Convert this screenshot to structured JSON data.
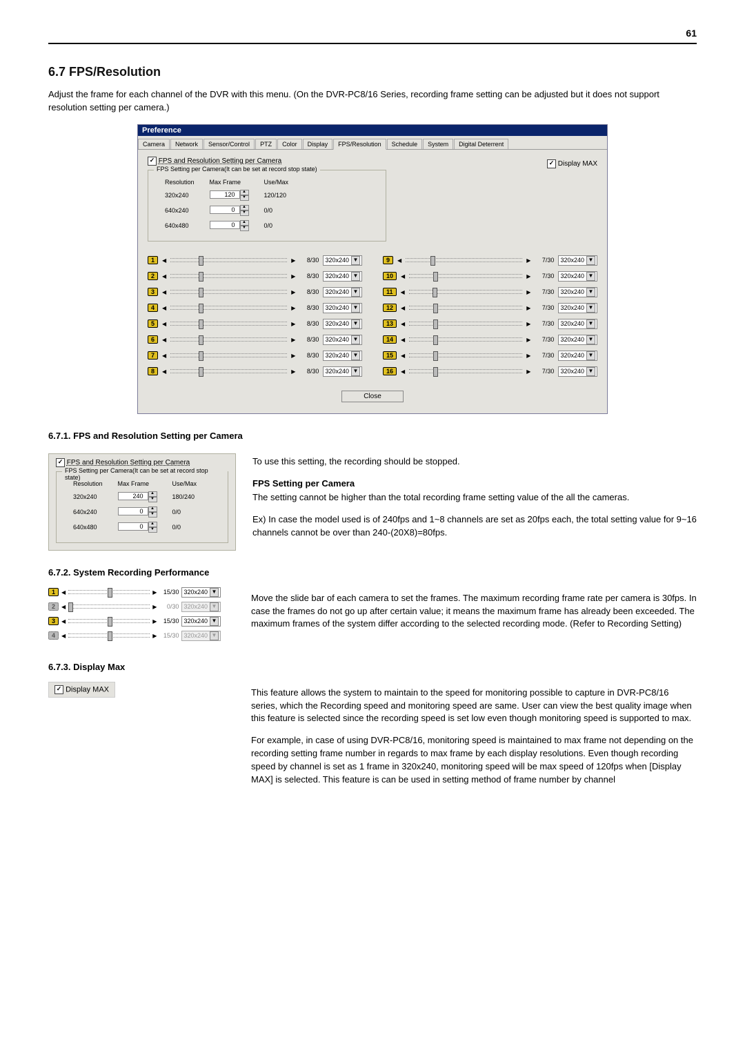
{
  "page_number": "61",
  "h2": "6.7    FPS/Resolution",
  "intro": "Adjust the frame for each channel of the DVR with this menu. (On the DVR-PC8/16 Series, recording frame setting can be adjusted but it does not support resolution setting per camera.)",
  "pref": {
    "title": "Preference",
    "tabs": [
      "Camera",
      "Network",
      "Sensor/Control",
      "PTZ",
      "Color",
      "Display",
      "FPS/Resolution",
      "Schedule",
      "System",
      "Digital Deterrent"
    ],
    "active_tab": 6,
    "chk_label": "FPS and Resolution Setting per Camera",
    "display_max_label": "Display MAX",
    "group_title": "FPS Setting per Camera(It can be set at record stop state)",
    "head_resolution": "Resolution",
    "head_maxframe": "Max Frame",
    "head_usemax": "Use/Max",
    "rows": [
      {
        "res": "320x240",
        "val": "120",
        "use": "120/120"
      },
      {
        "res": "640x240",
        "val": "0",
        "use": "0/0"
      },
      {
        "res": "640x480",
        "val": "0",
        "use": "0/0"
      }
    ],
    "left_cams": [
      {
        "n": "1",
        "fps": "8/30",
        "res": "320x240"
      },
      {
        "n": "2",
        "fps": "8/30",
        "res": "320x240"
      },
      {
        "n": "3",
        "fps": "8/30",
        "res": "320x240"
      },
      {
        "n": "4",
        "fps": "8/30",
        "res": "320x240"
      },
      {
        "n": "5",
        "fps": "8/30",
        "res": "320x240"
      },
      {
        "n": "6",
        "fps": "8/30",
        "res": "320x240"
      },
      {
        "n": "7",
        "fps": "8/30",
        "res": "320x240"
      },
      {
        "n": "8",
        "fps": "8/30",
        "res": "320x240"
      }
    ],
    "right_cams": [
      {
        "n": "9",
        "fps": "7/30",
        "res": "320x240"
      },
      {
        "n": "10",
        "fps": "7/30",
        "res": "320x240"
      },
      {
        "n": "11",
        "fps": "7/30",
        "res": "320x240"
      },
      {
        "n": "12",
        "fps": "7/30",
        "res": "320x240"
      },
      {
        "n": "13",
        "fps": "7/30",
        "res": "320x240"
      },
      {
        "n": "14",
        "fps": "7/30",
        "res": "320x240"
      },
      {
        "n": "15",
        "fps": "7/30",
        "res": "320x240"
      },
      {
        "n": "16",
        "fps": "7/30",
        "res": "320x240"
      }
    ],
    "close_label": "Close",
    "thumb_left_pct": "24%",
    "thumb_right_pct": "21%"
  },
  "s671": {
    "heading": "6.7.1.   FPS and Resolution Setting per Camera",
    "crop_chk": "FPS and Resolution Setting per Camera",
    "crop_group": "FPS Setting per Camera(It can be set at record stop state)",
    "head_resolution": "Resolution",
    "head_maxframe": "Max Frame",
    "head_usemax": "Use/Max",
    "rows": [
      {
        "res": "320x240",
        "val": "240",
        "use": "180/240"
      },
      {
        "res": "640x240",
        "val": "0",
        "use": "0/0"
      },
      {
        "res": "640x480",
        "val": "0",
        "use": "0/0"
      }
    ],
    "rtext1": "To use this setting, the recording should be stopped.",
    "rhead": "FPS Setting per Camera",
    "rtext2": "The setting cannot be higher than the total recording frame setting value of the all the cameras.",
    "rtext3": "Ex) In case the model used is of 240fps and 1~8 channels are set as 20fps each, the total setting value for 9~16 channels cannot be over than 240-(20X8)=80fps."
  },
  "s672": {
    "heading": "6.7.2.   System Recording Performance",
    "cams": [
      {
        "n": "1",
        "fps": "15/30",
        "res": "320x240",
        "enabled": true,
        "thumb": "48%"
      },
      {
        "n": "2",
        "fps": "0/30",
        "res": "320x240",
        "enabled": false,
        "thumb": "0%"
      },
      {
        "n": "3",
        "fps": "15/30",
        "res": "320x240",
        "enabled": true,
        "thumb": "48%"
      },
      {
        "n": "4",
        "fps": "15/30",
        "res": "320x240",
        "enabled": false,
        "thumb": "48%"
      }
    ],
    "rtext": "Move the slide bar of each camera to set the frames. The maximum recording frame rate per camera is 30fps. In case the frames do not go up after certain value; it means the maximum frame has already been exceeded. The maximum frames of the system differ according to the selected recording mode. (Refer to Recording Setting)"
  },
  "s673": {
    "heading": "6.7.3.   Display Max",
    "label": "Display MAX",
    "rtext1": "This feature allows the system to maintain to the speed for monitoring possible to capture in DVR-PC8/16 series, which the Recording speed and monitoring speed are same. User can view the best quality image when this feature is selected since the recording speed is set low even though monitoring speed is supported to max.",
    "rtext2": "For example, in case of using DVR-PC8/16, monitoring speed is maintained to max frame not depending on the recording setting frame number in regards to max frame by each display resolutions. Even though recording speed by channel is set as 1 frame in 320x240, monitoring speed will be max speed of 120fps when [Display MAX] is selected. This feature is can be used in setting method of frame number by channel"
  }
}
